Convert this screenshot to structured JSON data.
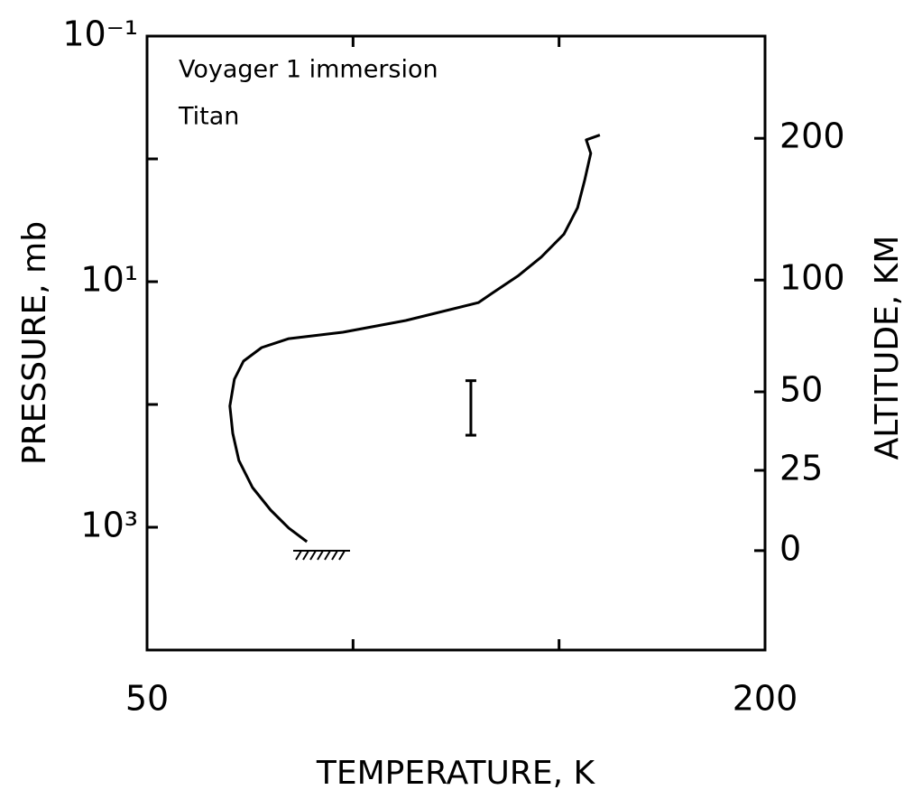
{
  "chart_data": {
    "type": "line",
    "annotations": [
      "Voyager 1 immersion",
      "Titan"
    ],
    "xlabel": "TEMPERATURE, K",
    "ylabel": "PRESSURE, mb",
    "y2label": "ALTITUDE, KM",
    "x": [
      159.9,
      156.6,
      157.7,
      156.2,
      154.5,
      151.2,
      145.7,
      140.2,
      133.6,
      130.4,
      112.8,
      97.5,
      84.4,
      77.8,
      73.4,
      71.2,
      70.1,
      70.8,
      72.3,
      75.6,
      80.0,
      84.4,
      88.8
    ],
    "series": [
      {
        "color": "#000000",
        "values": [
          0.64,
          0.7,
          0.9,
          1.5,
          2.5,
          4.1,
          6.3,
          8.9,
          12.5,
          14.8,
          20.7,
          25.8,
          29.1,
          34.4,
          44.4,
          62.2,
          103,
          172,
          286,
          475,
          725,
          1016,
          1312
        ]
      }
    ],
    "error_bar": {
      "temperature": 128.6,
      "pressure_low": 64,
      "pressure_high": 178
    },
    "xlim": [
      50,
      200
    ],
    "xticks": [
      50,
      200
    ],
    "xminor": [
      100,
      150
    ],
    "ylim": [
      0.1,
      10000
    ],
    "log_y": true,
    "y_reversed": true,
    "yticks": [
      {
        "value": 0.1,
        "label": "10⁻¹"
      },
      {
        "value": 10,
        "label": "10¹"
      },
      {
        "value": 1000,
        "label": "10³"
      }
    ],
    "yminor": [
      1,
      100,
      10000
    ],
    "y2ticks": [
      200,
      100,
      50,
      25,
      0
    ],
    "y2_pressure": [
      0.68,
      9.7,
      78.9,
      344,
      1550
    ]
  }
}
